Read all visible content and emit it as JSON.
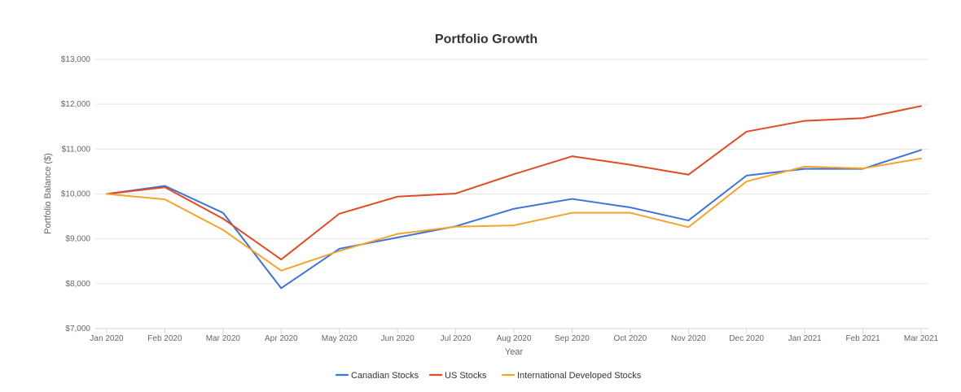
{
  "chart_data": {
    "type": "line",
    "title": "Portfolio Growth",
    "xlabel": "Year",
    "ylabel": "Portfolio Balance ($)",
    "ylim": [
      7000,
      13000
    ],
    "yticks": [
      7000,
      8000,
      9000,
      10000,
      11000,
      12000,
      13000
    ],
    "ytick_labels": [
      "$7,000",
      "$8,000",
      "$9,000",
      "$10,000",
      "$11,000",
      "$12,000",
      "$13,000"
    ],
    "categories": [
      "Jan 2020",
      "Feb 2020",
      "Mar 2020",
      "Apr 2020",
      "May 2020",
      "Jun 2020",
      "Jul 2020",
      "Aug 2020",
      "Sep 2020",
      "Oct 2020",
      "Nov 2020",
      "Dec 2020",
      "Jan 2021",
      "Feb 2021",
      "Mar 2021"
    ],
    "series": [
      {
        "name": "Canadian Stocks",
        "color": "#3f73d6",
        "values": [
          10000,
          10180,
          9580,
          7900,
          8780,
          9030,
          9280,
          9670,
          9890,
          9700,
          9410,
          10410,
          10560,
          10560,
          10980
        ]
      },
      {
        "name": "US Stocks",
        "color": "#e04b24",
        "values": [
          10000,
          10150,
          9450,
          8540,
          9560,
          9940,
          10010,
          10440,
          10840,
          10650,
          10430,
          11390,
          11630,
          11690,
          11960
        ]
      },
      {
        "name": "International Developed Stocks",
        "color": "#f5a32b",
        "values": [
          10000,
          9880,
          9200,
          8290,
          8730,
          9110,
          9270,
          9300,
          9580,
          9580,
          9260,
          10280,
          10610,
          10570,
          10790
        ]
      }
    ],
    "grid": true,
    "legend_position": "bottom-center"
  }
}
